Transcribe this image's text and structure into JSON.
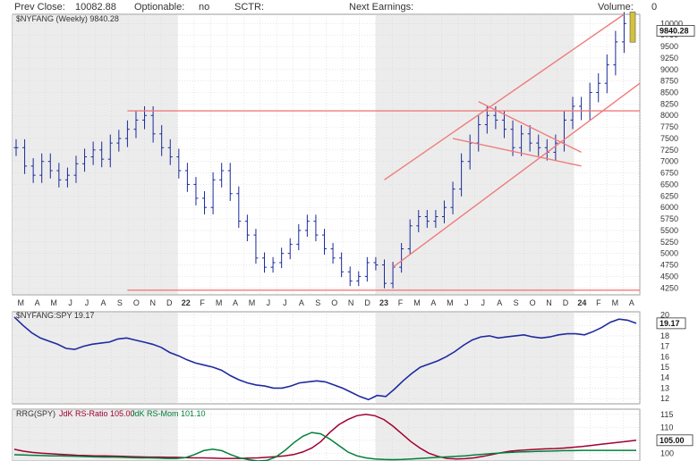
{
  "header": {
    "prev_close_label": "Prev Close:",
    "prev_close_value": "10082.88",
    "optionable_label": "Optionable:",
    "optionable_value": "no",
    "sctr_label": "SCTR:",
    "next_earnings_label": "Next Earnings:",
    "volume_label": "Volume:",
    "volume_value": "0"
  },
  "chart_data": [
    {
      "type": "ohlc",
      "legend": "$NYFANG (Weekly) 9840.28",
      "last_value_label": "9840.28",
      "ylim": [
        4100,
        10200
      ],
      "yticks": [
        4250,
        4500,
        4750,
        5000,
        5250,
        5500,
        5750,
        6000,
        6250,
        6500,
        6750,
        7000,
        7250,
        7500,
        7750,
        8000,
        8250,
        8500,
        8750,
        9000,
        9250,
        9500,
        9750,
        10000
      ],
      "ytick_labels": [
        "4250",
        "4500",
        "4750",
        "5000",
        "5250",
        "5500",
        "5750",
        "6000",
        "6250",
        "6500",
        "6750",
        "7000",
        "7250",
        "7500",
        "7750",
        "8000",
        "8250",
        "8500",
        "8750",
        "9000",
        "9250",
        "9500",
        "9750",
        "10000"
      ],
      "x_months": [
        "M",
        "A",
        "M",
        "J",
        "J",
        "A",
        "S",
        "O",
        "N",
        "D",
        "22",
        "F",
        "M",
        "A",
        "M",
        "J",
        "J",
        "A",
        "S",
        "O",
        "N",
        "D",
        "23",
        "F",
        "M",
        "A",
        "M",
        "J",
        "J",
        "A",
        "S",
        "O",
        "N",
        "D",
        "24",
        "F",
        "M",
        "A"
      ],
      "x_month_pos": [
        0,
        1,
        2,
        3,
        4,
        5,
        6,
        7,
        8,
        9,
        10,
        11,
        12,
        13,
        14,
        15,
        16,
        17,
        18,
        19,
        20,
        21,
        22,
        23,
        24,
        25,
        26,
        27,
        28,
        29,
        30,
        31,
        32,
        33,
        34,
        35,
        36,
        37
      ],
      "closes": [
        7300,
        6900,
        6700,
        7000,
        6800,
        6600,
        6700,
        6950,
        7100,
        7250,
        7050,
        7400,
        7500,
        7700,
        7900,
        8000,
        7600,
        7300,
        7100,
        6800,
        6500,
        6200,
        6000,
        6600,
        6800,
        6300,
        5700,
        5400,
        4900,
        4700,
        4800,
        5000,
        5200,
        5500,
        5700,
        5400,
        5100,
        4900,
        4600,
        4400,
        4500,
        4800,
        4750,
        4350,
        4700,
        5100,
        5600,
        5800,
        5700,
        5800,
        6000,
        6400,
        7000,
        7400,
        7800,
        8000,
        7900,
        7700,
        7300,
        7600,
        7400,
        7300,
        7200,
        7400,
        7900,
        8200,
        8100,
        8500,
        8700,
        9100,
        9600,
        10000,
        9840
      ],
      "overlays": [
        {
          "kind": "hline",
          "y": 8100
        },
        {
          "kind": "hline",
          "y": 4200
        },
        {
          "kind": "line",
          "x0": 43,
          "y0": 6600,
          "x1": 71,
          "y1": 10200
        },
        {
          "kind": "line",
          "x0": 44,
          "y0": 4700,
          "x1": 73,
          "y1": 8700
        },
        {
          "kind": "line",
          "x0": 54,
          "y0": 8300,
          "x1": 66,
          "y1": 7200
        },
        {
          "kind": "line",
          "x0": 51,
          "y0": 7500,
          "x1": 66,
          "y1": 6900
        }
      ]
    },
    {
      "type": "line",
      "legend": "$NYFANG:SPY 19.17",
      "last_value_label": "19.17",
      "ylim": [
        11.5,
        20.3
      ],
      "yticks": [
        12,
        13,
        14,
        15,
        16,
        17,
        18,
        19,
        20
      ],
      "ytick_labels": [
        "12",
        "13",
        "14",
        "15",
        "16",
        "17",
        "18",
        "19",
        "20"
      ],
      "values": [
        19.8,
        19.0,
        18.3,
        17.8,
        17.5,
        17.2,
        16.8,
        16.7,
        17.0,
        17.2,
        17.3,
        17.4,
        17.7,
        17.8,
        17.6,
        17.4,
        17.2,
        16.9,
        16.4,
        16.1,
        15.7,
        15.4,
        15.2,
        15.0,
        14.7,
        14.2,
        13.8,
        13.5,
        13.3,
        13.2,
        13.0,
        13.0,
        13.2,
        13.5,
        13.6,
        13.7,
        13.6,
        13.3,
        13.0,
        12.6,
        12.2,
        11.9,
        12.3,
        12.2,
        12.9,
        13.7,
        14.4,
        15.0,
        15.3,
        15.6,
        16.0,
        16.5,
        17.1,
        17.6,
        17.9,
        18.0,
        17.8,
        17.9,
        18.0,
        18.1,
        17.9,
        17.8,
        17.9,
        18.1,
        18.2,
        18.2,
        18.1,
        18.4,
        18.8,
        19.3,
        19.6,
        19.5,
        19.2
      ]
    },
    {
      "type": "line",
      "legend_prefix": "RRG(SPY)",
      "series": [
        {
          "name": "JdK RS-Ratio 105.00",
          "color": "#a00030",
          "values": [
            101.5,
            100.8,
            100.3,
            100.0,
            99.8,
            99.6,
            99.4,
            99.2,
            99.1,
            99.0,
            99.0,
            98.9,
            98.8,
            98.7,
            98.6,
            98.5,
            98.5,
            98.4,
            98.4,
            98.3,
            98.2,
            98.2,
            98.1,
            98.0,
            98.0,
            98.0,
            98.1,
            98.2,
            98.4,
            98.7,
            99.0,
            99.5,
            100.5,
            102.0,
            104.5,
            108.0,
            111.0,
            113.0,
            114.5,
            115.0,
            114.5,
            113.0,
            110.5,
            107.5,
            104.5,
            102.0,
            100.0,
            98.8,
            98.0,
            97.8,
            97.9,
            98.2,
            98.8,
            99.5,
            100.2,
            100.8,
            101.1,
            101.3,
            101.5,
            101.7,
            101.8,
            102.0,
            102.3,
            102.6,
            103.0,
            103.4,
            103.8,
            104.2,
            104.6,
            105.0
          ]
        },
        {
          "name": "JdK RS-Mom 101.10",
          "color": "#00803a",
          "values": [
            99.4,
            99.3,
            99.2,
            99.1,
            99.0,
            99.0,
            98.9,
            98.8,
            98.7,
            98.6,
            98.5,
            98.5,
            98.4,
            98.3,
            98.2,
            98.2,
            98.1,
            98.0,
            98.0,
            98.3,
            99.5,
            101.0,
            101.6,
            101.0,
            99.5,
            98.2,
            97.5,
            97.0,
            97.2,
            98.5,
            101.0,
            104.0,
            106.5,
            108.0,
            107.5,
            105.5,
            103.0,
            100.5,
            99.0,
            98.2,
            97.8,
            97.6,
            97.5,
            97.6,
            97.8,
            98.0,
            98.2,
            98.4,
            98.6,
            98.8,
            99.0,
            99.3,
            99.6,
            99.9,
            100.1,
            100.3,
            100.5,
            100.6,
            100.7,
            100.8,
            100.9,
            101.0,
            101.0,
            101.1,
            101.1,
            101.1,
            101.1,
            101.1,
            101.1,
            101.1
          ]
        }
      ],
      "ylim": [
        97,
        117
      ],
      "yticks": [
        100,
        105,
        110,
        115
      ],
      "ytick_labels": [
        "100",
        "105",
        "110",
        "115"
      ],
      "last_value_label": "105.00"
    }
  ]
}
